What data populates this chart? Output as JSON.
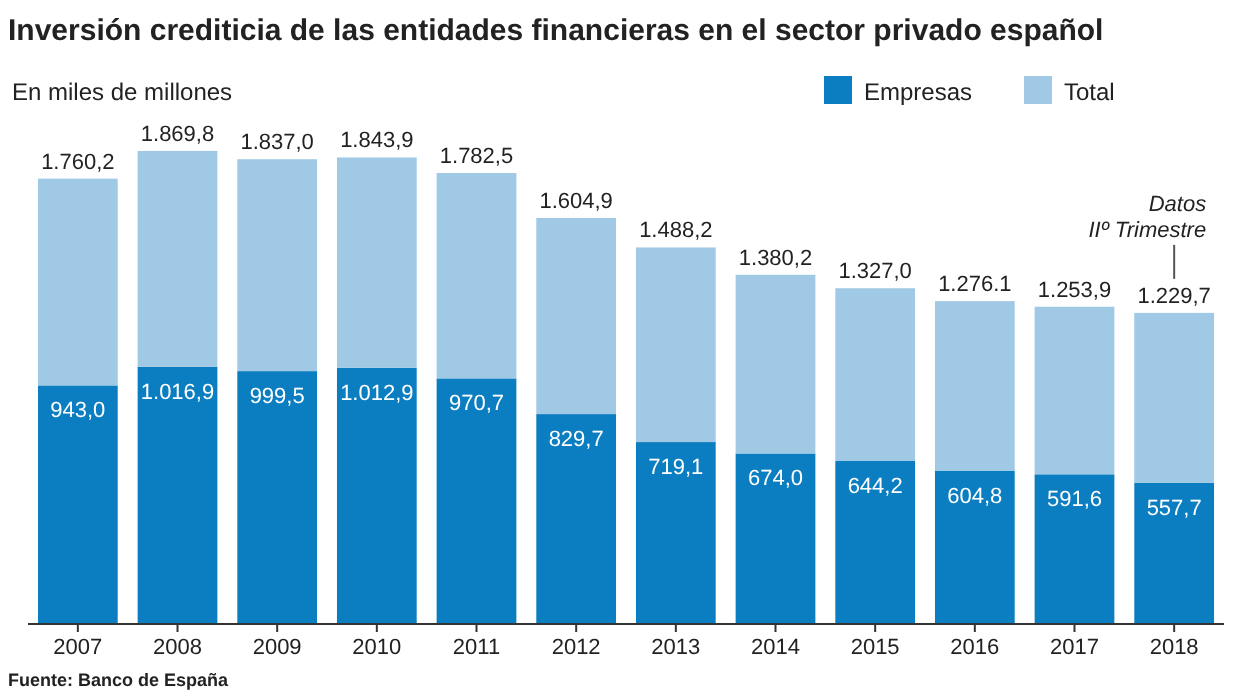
{
  "chart_data": {
    "type": "bar",
    "title": "Inversión crediticia de las entidades financieras en el sector privado español",
    "stacked": true,
    "legend": "top right",
    "categories": [
      "2007",
      "2008",
      "2009",
      "2010",
      "2011",
      "2012",
      "2013",
      "2014",
      "2015",
      "2016",
      "2017",
      "2018"
    ],
    "series": [
      {
        "name": "Empresas",
        "color": "#0b7dc1",
        "values": [
          943.0,
          1016.9,
          999.5,
          1012.9,
          970.7,
          829.7,
          719.1,
          674.0,
          644.2,
          604.8,
          591.6,
          557.7
        ],
        "value_labels": [
          "943,0",
          "1.016,9",
          "999,5",
          "1.012,9",
          "970,7",
          "829,7",
          "719,1",
          "674,0",
          "644,2",
          "604,8",
          "591,6",
          "557,7"
        ]
      },
      {
        "name": "Total",
        "color": "#9fc9e4",
        "values": [
          817.2,
          852.9,
          837.5,
          831.0,
          811.8,
          775.2,
          769.1,
          706.2,
          682.8,
          671.3,
          662.3,
          672.0
        ]
      }
    ],
    "totals": [
      "1.760,2",
      "1.869,8",
      "1.837,0",
      "1.843,9",
      "1.782,5",
      "1.604,9",
      "1.488,2",
      "1.380,2",
      "1.327,0",
      "1.276.1",
      "1.253,9",
      "1.229,7"
    ],
    "annotations": [
      "En miles de millones",
      "Datos IIº Trimestre",
      "Fuente: Banco de España"
    ]
  }
}
